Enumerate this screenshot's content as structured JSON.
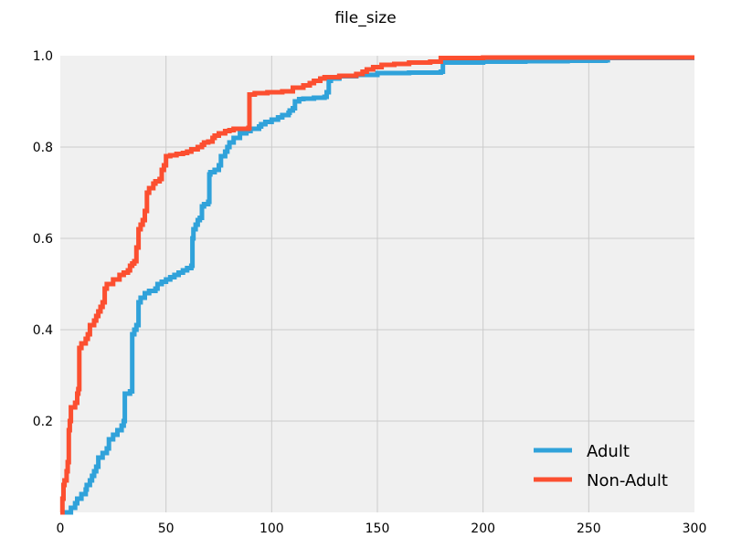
{
  "chart_data": {
    "type": "line",
    "title": "file_size",
    "xlabel": "",
    "ylabel": "",
    "xlim": [
      0,
      300
    ],
    "ylim": [
      0.0,
      1.0
    ],
    "xticks": [
      0,
      50,
      100,
      150,
      200,
      250,
      300
    ],
    "yticks": [
      0.2,
      0.4,
      0.6,
      0.8,
      1.0
    ],
    "xtick_labels": [
      "0",
      "50",
      "100",
      "150",
      "200",
      "250",
      "300"
    ],
    "ytick_labels": [
      "0.2",
      "0.4",
      "0.6",
      "0.8",
      "1.0"
    ],
    "grid": true,
    "legend_position": "lower-right",
    "series": [
      {
        "name": "Adult",
        "color": "#30a2da",
        "points": [
          [
            0,
            0.0
          ],
          [
            5,
            0.01
          ],
          [
            7,
            0.02
          ],
          [
            8,
            0.03
          ],
          [
            10,
            0.04
          ],
          [
            12,
            0.05
          ],
          [
            12.5,
            0.06
          ],
          [
            14,
            0.07
          ],
          [
            15,
            0.08
          ],
          [
            16,
            0.09
          ],
          [
            17,
            0.1
          ],
          [
            18,
            0.12
          ],
          [
            20,
            0.13
          ],
          [
            22,
            0.14
          ],
          [
            23,
            0.16
          ],
          [
            25,
            0.17
          ],
          [
            27,
            0.18
          ],
          [
            29,
            0.19
          ],
          [
            30,
            0.2
          ],
          [
            30.5,
            0.26
          ],
          [
            33,
            0.265
          ],
          [
            34,
            0.39
          ],
          [
            35,
            0.4
          ],
          [
            36,
            0.41
          ],
          [
            37,
            0.46
          ],
          [
            38,
            0.47
          ],
          [
            40,
            0.48
          ],
          [
            42,
            0.485
          ],
          [
            45,
            0.49
          ],
          [
            46,
            0.5
          ],
          [
            48,
            0.505
          ],
          [
            50,
            0.51
          ],
          [
            52,
            0.515
          ],
          [
            54,
            0.52
          ],
          [
            56,
            0.525
          ],
          [
            58,
            0.53
          ],
          [
            60,
            0.535
          ],
          [
            62,
            0.54
          ],
          [
            62.5,
            0.6
          ],
          [
            63,
            0.62
          ],
          [
            64,
            0.63
          ],
          [
            65,
            0.64
          ],
          [
            66,
            0.645
          ],
          [
            67,
            0.67
          ],
          [
            68,
            0.675
          ],
          [
            70,
            0.68
          ],
          [
            70.5,
            0.74
          ],
          [
            71,
            0.745
          ],
          [
            73,
            0.75
          ],
          [
            75,
            0.76
          ],
          [
            76,
            0.78
          ],
          [
            78,
            0.79
          ],
          [
            79,
            0.8
          ],
          [
            80,
            0.81
          ],
          [
            82,
            0.82
          ],
          [
            85,
            0.83
          ],
          [
            88,
            0.835
          ],
          [
            90,
            0.84
          ],
          [
            94,
            0.845
          ],
          [
            95,
            0.85
          ],
          [
            97,
            0.855
          ],
          [
            100,
            0.86
          ],
          [
            103,
            0.865
          ],
          [
            105,
            0.87
          ],
          [
            108,
            0.875
          ],
          [
            108.5,
            0.88
          ],
          [
            110,
            0.885
          ],
          [
            111,
            0.9
          ],
          [
            113,
            0.905
          ],
          [
            115,
            0.906
          ],
          [
            120,
            0.908
          ],
          [
            125,
            0.91
          ],
          [
            126,
            0.92
          ],
          [
            127,
            0.945
          ],
          [
            128,
            0.95
          ],
          [
            132,
            0.955
          ],
          [
            140,
            0.958
          ],
          [
            150,
            0.962
          ],
          [
            165,
            0.963
          ],
          [
            180,
            0.965
          ],
          [
            181,
            0.985
          ],
          [
            200,
            0.987
          ],
          [
            220,
            0.988
          ],
          [
            240,
            0.989
          ],
          [
            258,
            0.99
          ],
          [
            259,
            0.995
          ],
          [
            300,
            0.995
          ]
        ]
      },
      {
        "name": "Non-Adult",
        "color": "#fc4f30",
        "points": [
          [
            0,
            0.0
          ],
          [
            1,
            0.03
          ],
          [
            1.5,
            0.06
          ],
          [
            2,
            0.07
          ],
          [
            3,
            0.09
          ],
          [
            3.5,
            0.11
          ],
          [
            4,
            0.18
          ],
          [
            4.5,
            0.2
          ],
          [
            5,
            0.23
          ],
          [
            7,
            0.24
          ],
          [
            8,
            0.26
          ],
          [
            8.5,
            0.27
          ],
          [
            9,
            0.36
          ],
          [
            10,
            0.37
          ],
          [
            12,
            0.38
          ],
          [
            13,
            0.39
          ],
          [
            14,
            0.41
          ],
          [
            16,
            0.42
          ],
          [
            17,
            0.43
          ],
          [
            18,
            0.44
          ],
          [
            19,
            0.45
          ],
          [
            20,
            0.46
          ],
          [
            21,
            0.49
          ],
          [
            22,
            0.5
          ],
          [
            25,
            0.51
          ],
          [
            28,
            0.52
          ],
          [
            30,
            0.525
          ],
          [
            32,
            0.53
          ],
          [
            33,
            0.54
          ],
          [
            34,
            0.545
          ],
          [
            35,
            0.55
          ],
          [
            36,
            0.58
          ],
          [
            37,
            0.62
          ],
          [
            38,
            0.63
          ],
          [
            39,
            0.64
          ],
          [
            40,
            0.66
          ],
          [
            41,
            0.7
          ],
          [
            42,
            0.71
          ],
          [
            44,
            0.72
          ],
          [
            45,
            0.725
          ],
          [
            47,
            0.73
          ],
          [
            48,
            0.75
          ],
          [
            49,
            0.76
          ],
          [
            50,
            0.78
          ],
          [
            52,
            0.782
          ],
          [
            55,
            0.785
          ],
          [
            58,
            0.787
          ],
          [
            60,
            0.79
          ],
          [
            62,
            0.795
          ],
          [
            65,
            0.8
          ],
          [
            67,
            0.805
          ],
          [
            68,
            0.81
          ],
          [
            70,
            0.812
          ],
          [
            72,
            0.82
          ],
          [
            73,
            0.825
          ],
          [
            75,
            0.83
          ],
          [
            78,
            0.835
          ],
          [
            80,
            0.837
          ],
          [
            82,
            0.84
          ],
          [
            89,
            0.842
          ],
          [
            89.5,
            0.915
          ],
          [
            92,
            0.918
          ],
          [
            98,
            0.92
          ],
          [
            105,
            0.922
          ],
          [
            110,
            0.93
          ],
          [
            115,
            0.935
          ],
          [
            118,
            0.94
          ],
          [
            120,
            0.945
          ],
          [
            123,
            0.95
          ],
          [
            125,
            0.953
          ],
          [
            132,
            0.956
          ],
          [
            140,
            0.96
          ],
          [
            143,
            0.965
          ],
          [
            145,
            0.97
          ],
          [
            148,
            0.975
          ],
          [
            152,
            0.98
          ],
          [
            158,
            0.982
          ],
          [
            165,
            0.985
          ],
          [
            175,
            0.987
          ],
          [
            180,
            0.995
          ],
          [
            200,
            0.996
          ],
          [
            300,
            0.996
          ]
        ]
      }
    ]
  }
}
